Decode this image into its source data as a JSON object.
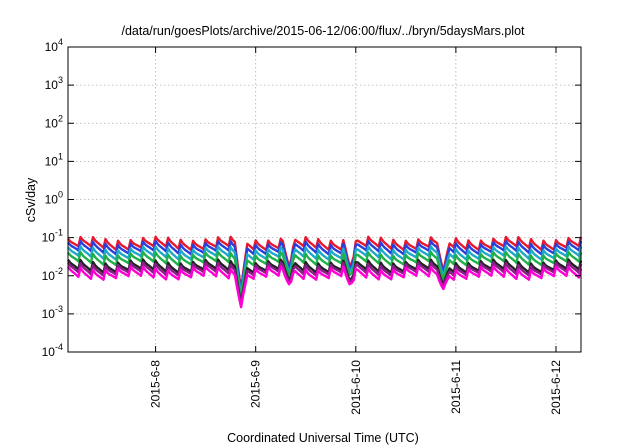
{
  "chart_data": {
    "type": "line",
    "title": "/data/run/goesPlots/archive/2015-06-12/06:00/flux/../bryn/5daysMars.plot",
    "xlabel": "Coordinated Universal Time (UTC)",
    "ylabel": "cSv/day",
    "yscale": "log",
    "ylim": [
      0.0001,
      10000
    ],
    "xlim": [
      "2015-06-07 03:00",
      "2015-06-12 06:00"
    ],
    "x_ticks": [
      "2015-6-8",
      "2015-6-9",
      "2015-6-10",
      "2015-6-11",
      "2015-6-12"
    ],
    "y_ticks": [
      {
        "base": "10",
        "exp": "-4"
      },
      {
        "base": "10",
        "exp": "-3"
      },
      {
        "base": "10",
        "exp": "-2"
      },
      {
        "base": "10",
        "exp": "-1"
      },
      {
        "base": "10",
        "exp": "0"
      },
      {
        "base": "10",
        "exp": "1"
      },
      {
        "base": "10",
        "exp": "2"
      },
      {
        "base": "10",
        "exp": "3"
      },
      {
        "base": "10",
        "exp": "4"
      }
    ],
    "grid": true,
    "legend": "none",
    "series": [
      {
        "color": "#e8182e",
        "base_value": 0.075
      },
      {
        "color": "#2a3fd9",
        "base_value": 0.058
      },
      {
        "color": "#1fa8c8",
        "base_value": 0.042
      },
      {
        "color": "#1fb04a",
        "base_value": 0.03
      },
      {
        "color": "#222222",
        "base_value": 0.019
      },
      {
        "color": "#8a1f8a",
        "base_value": 0.016
      },
      {
        "color": "#ff00d4",
        "base_value": 0.0125
      }
    ],
    "dips": [
      {
        "x": "2015-06-08 20:30",
        "min_value": 0.0015
      },
      {
        "x": "2015-06-09 08:00",
        "min_value": 0.006
      },
      {
        "x": "2015-06-09 22:40",
        "min_value": 0.0055
      },
      {
        "x": "2015-06-10 21:00",
        "min_value": 0.0045
      }
    ]
  }
}
